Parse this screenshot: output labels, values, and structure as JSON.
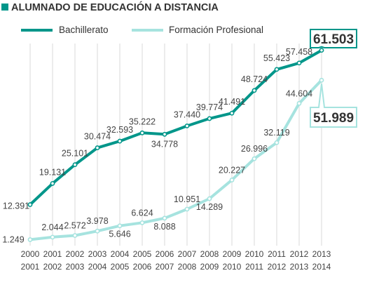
{
  "chart_data": {
    "type": "line",
    "title": "ALUMNADO DE EDUCACIÓN A DISTANCIA",
    "categories": [
      [
        "2000",
        "2001"
      ],
      [
        "2001",
        "2002"
      ],
      [
        "2002",
        "2003"
      ],
      [
        "2003",
        "2004"
      ],
      [
        "2004",
        "2005"
      ],
      [
        "2005",
        "2006"
      ],
      [
        "2006",
        "2007"
      ],
      [
        "2007",
        "2008"
      ],
      [
        "2008",
        "2009"
      ],
      [
        "2009",
        "2010"
      ],
      [
        "2010",
        "2011"
      ],
      [
        "2011",
        "2012"
      ],
      [
        "2012",
        "2013"
      ],
      [
        "2013",
        "2014"
      ]
    ],
    "series": [
      {
        "name": "Bachillerato",
        "color": "#00968a",
        "values": [
          12391,
          19131,
          25101,
          30474,
          32593,
          35222,
          34778,
          37440,
          39774,
          41491,
          48724,
          55423,
          57458,
          61503
        ],
        "labels": [
          "12.391",
          "19.131",
          "25.101",
          "30.474",
          "32.593",
          "35.222",
          "34.778",
          "37.440",
          "39.774",
          "41.491",
          "48.724",
          "55.423",
          "57.458",
          "61.503"
        ]
      },
      {
        "name": "Formación Profesional",
        "color": "#a6e3df",
        "values": [
          1249,
          2044,
          2572,
          3978,
          5646,
          6624,
          8088,
          10951,
          14289,
          20227,
          26996,
          32119,
          44604,
          51989
        ],
        "labels": [
          "1.249",
          "2.044",
          "2.572",
          "3.978",
          "5.646",
          "6.624",
          "8.088",
          "10.951",
          "14.289",
          "20.227",
          "26.996",
          "32.119",
          "44.604",
          "51.989"
        ]
      }
    ],
    "ylim": [
      0,
      65000
    ],
    "legend_position": "top-left",
    "grid": "vertical"
  }
}
